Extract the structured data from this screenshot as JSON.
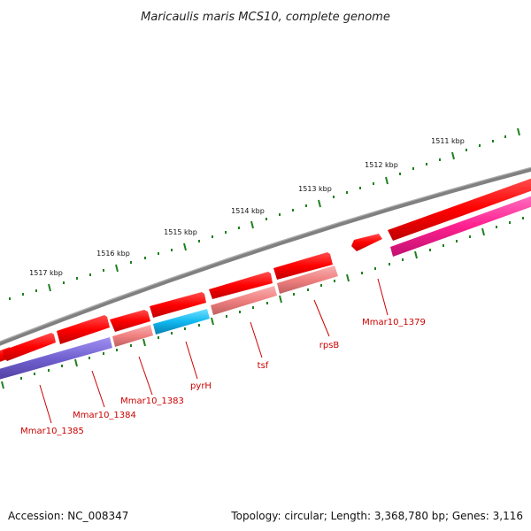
{
  "title": "Maricaulis maris MCS10, complete genome",
  "accession": "Accession: NC_008347",
  "topology": "Topology: circular; Length: 3,368,780 bp; Genes: 3,116",
  "tick_labels": [
    "1511 kbp",
    "1512 kbp",
    "1513 kbp",
    "1514 kbp",
    "1515 kbp",
    "1516 kbp",
    "1517 kbp"
  ],
  "gene_labels": [
    "Mmar10_1379",
    "rpsB",
    "tsf",
    "pyrH",
    "Mmar10_1383",
    "Mmar10_1384",
    "Mmar10_1385"
  ],
  "colors": {
    "backbone": "#808080",
    "forward_gene": "#ff0000",
    "reverse_gene_primary": "#ff2090",
    "reverse_gene_light": "#f08080",
    "reverse_gene_cyan": "#10b8f0",
    "reverse_gene_purple": "#7060d0",
    "tick": "#208020",
    "label": "#cc0000"
  }
}
